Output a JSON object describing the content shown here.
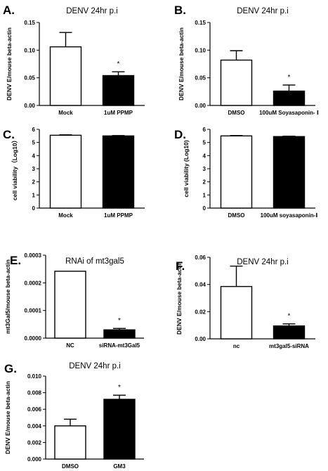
{
  "chart_data": [
    {
      "type": "bar",
      "panel_label": "A.",
      "title": "DENV 24hr p.i",
      "ylabel": "DENV E/mouse beta-actin",
      "ylim": [
        0,
        0.15
      ],
      "yticks": [
        "0.00",
        "0.05",
        "0.10",
        "0.15"
      ],
      "categories": [
        "Mock",
        "1uM PPMP"
      ],
      "values": [
        0.106,
        0.054
      ],
      "errors": [
        0.026,
        0.007
      ],
      "bar_fill": [
        "#ffffff",
        "#000000"
      ],
      "significance": [
        "",
        "*"
      ]
    },
    {
      "type": "bar",
      "panel_label": "B.",
      "title": "DENV 24hr p.i",
      "ylabel": "DENV E/mouse beta-actin",
      "ylim": [
        0,
        0.15
      ],
      "yticks": [
        "0.00",
        "0.05",
        "0.10",
        "0.15"
      ],
      "categories": [
        "DMSO",
        "100uM Soyasaponin- Ⅰ"
      ],
      "values": [
        0.082,
        0.026
      ],
      "errors": [
        0.017,
        0.011
      ],
      "bar_fill": [
        "#ffffff",
        "#000000"
      ],
      "significance": [
        "",
        "*"
      ]
    },
    {
      "type": "bar",
      "panel_label": "C.",
      "title": "",
      "ylabel": "cell viability（Log10）",
      "ylim": [
        0,
        6
      ],
      "yticks": [
        "0",
        "1",
        "2",
        "3",
        "4",
        "5",
        "6"
      ],
      "categories": [
        "Mock",
        "1uM PPMP"
      ],
      "values": [
        5.55,
        5.5
      ],
      "errors": [
        0.03,
        0.03
      ],
      "bar_fill": [
        "#ffffff",
        "#000000"
      ],
      "significance": [
        "",
        ""
      ]
    },
    {
      "type": "bar",
      "panel_label": "D.",
      "title": "",
      "ylabel": "cell viability (Log10)",
      "ylim": [
        0,
        6
      ],
      "yticks": [
        "0",
        "1",
        "2",
        "3",
        "4",
        "5",
        "6"
      ],
      "categories": [
        "DMSO",
        "100uM soyasaponin-Ⅰ"
      ],
      "values": [
        5.5,
        5.45
      ],
      "errors": [
        0.03,
        0.03
      ],
      "bar_fill": [
        "#ffffff",
        "#000000"
      ],
      "significance": [
        "",
        ""
      ]
    },
    {
      "type": "bar",
      "panel_label": "E.",
      "title": "RNAi of mt3gal5",
      "ylabel": "mt3Gal5/mouse beta-actin",
      "ylim": [
        0,
        0.0003
      ],
      "yticks": [
        "0.0000",
        "0.0001",
        "0.0002",
        "0.0003"
      ],
      "categories": [
        "NC",
        "siRNA-mt3Gal5"
      ],
      "values": [
        0.000242,
        3e-05
      ],
      "errors": [
        0,
        5e-06
      ],
      "bar_fill": [
        "#ffffff",
        "#000000"
      ],
      "significance": [
        "",
        "*"
      ]
    },
    {
      "type": "bar",
      "panel_label": "F.",
      "title": "DENV 24hr p.i",
      "ylabel": "DENV E/mouse beta-actin",
      "ylim": [
        0,
        0.06
      ],
      "yticks": [
        "0.00",
        "0.02",
        "0.04",
        "0.06"
      ],
      "categories": [
        "nc",
        "mt3gal5-siRNA"
      ],
      "values": [
        0.0385,
        0.0095
      ],
      "errors": [
        0.015,
        0.0015
      ],
      "bar_fill": [
        "#ffffff",
        "#000000"
      ],
      "significance": [
        "",
        "*"
      ]
    },
    {
      "type": "bar",
      "panel_label": "G.",
      "title": "DENV 24hr p.i",
      "ylabel": "DENV E/mouse beta-actin",
      "ylim": [
        0,
        0.01
      ],
      "yticks": [
        "0.000",
        "0.002",
        "0.004",
        "0.006",
        "0.008",
        "0.010"
      ],
      "categories": [
        "DMSO",
        "GM3"
      ],
      "values": [
        0.004,
        0.0072
      ],
      "errors": [
        0.0008,
        0.0005
      ],
      "bar_fill": [
        "#ffffff",
        "#000000"
      ],
      "significance": [
        "",
        "*"
      ]
    }
  ]
}
